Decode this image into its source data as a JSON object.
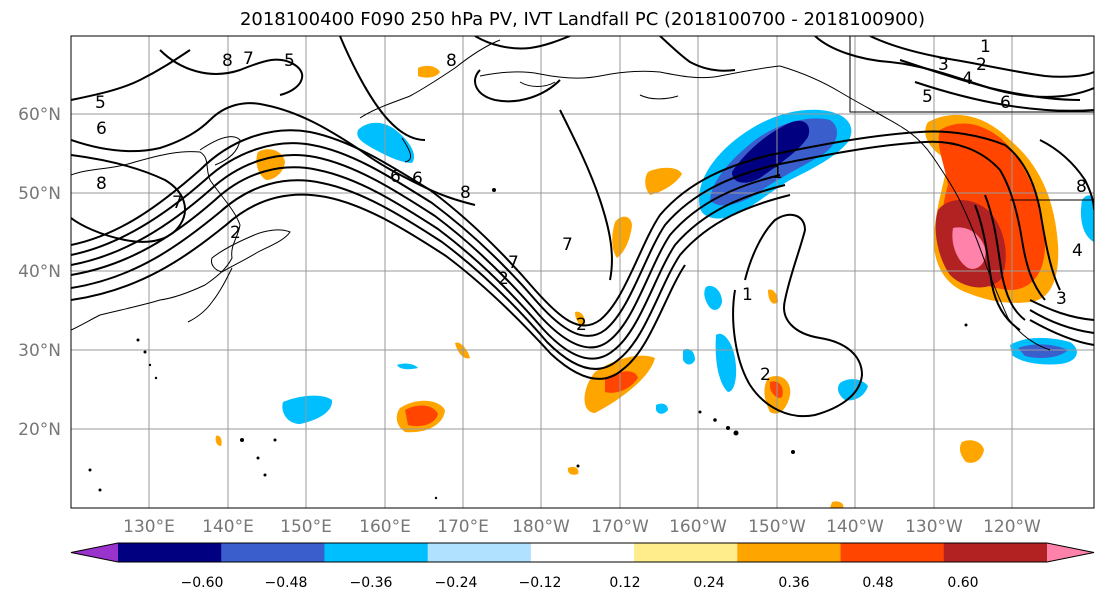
{
  "title": "2018100400 F090 250 hPa PV, IVT Landfall PC (2018100700 - 2018100900)",
  "map": {
    "lat_labels": [
      "60°N",
      "50°N",
      "40°N",
      "30°N",
      "20°N"
    ],
    "lon_labels": [
      "130°E",
      "140°E",
      "150°E",
      "160°E",
      "170°E",
      "180°W",
      "170°W",
      "160°W",
      "150°W",
      "140°W",
      "130°W",
      "120°W"
    ],
    "contour_labels": [
      "8",
      "7",
      "5",
      "6",
      "8",
      "7",
      "2",
      "5",
      "6",
      "6",
      "8",
      "7",
      "1",
      "3",
      "4",
      "5",
      "6",
      "2",
      "8",
      "1",
      "2",
      "3",
      "4",
      "2",
      "1",
      "7",
      "2",
      "8"
    ]
  },
  "colorbar": {
    "ticks": [
      "−0.60",
      "−0.48",
      "−0.36",
      "−0.24",
      "−0.12",
      "0.12",
      "0.24",
      "0.36",
      "0.48",
      "0.60"
    ],
    "colors": [
      "#9933cc",
      "#000080",
      "#3a5fcd",
      "#00bfff",
      "#b0e2ff",
      "#ffffff",
      "#ffec8b",
      "#ffa500",
      "#ff4500",
      "#b22222",
      "#ff82ab"
    ]
  }
}
